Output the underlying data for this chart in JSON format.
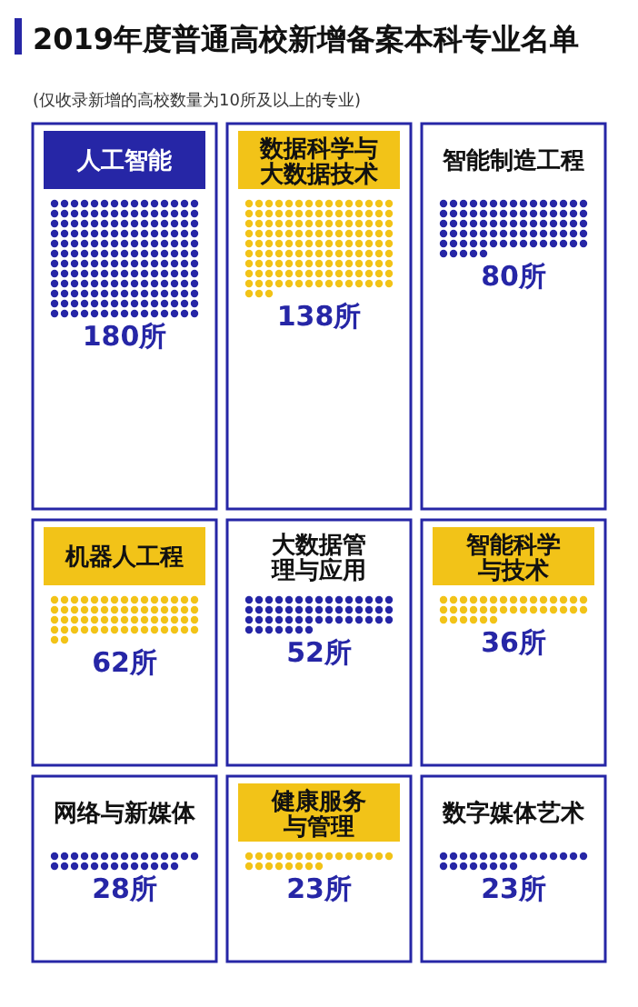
{
  "chart_data": {
    "type": "other",
    "title": "2019年度普通高校新增备案本科专业名单",
    "subtitle": "(仅收录新增的高校数量为10所及以上的专业)",
    "categories": [
      "人工智能",
      "数据科学与大数据技术",
      "智能制造工程",
      "机器人工程",
      "大数据管理与应用",
      "智能科学与技术",
      "网络与新媒体",
      "健康服务与管理",
      "数字媒体艺术"
    ],
    "values": [
      180,
      138,
      80,
      62,
      52,
      36,
      28,
      23,
      23
    ],
    "value_labels": [
      "180所",
      "138所",
      "80所",
      "62所",
      "52所",
      "36所",
      "28所",
      "23所",
      "23所"
    ],
    "colors": [
      "#2626a6",
      "#f2c318",
      "#2626a6",
      "#f2c318",
      "#2626a6",
      "#f2c318",
      "#2626a6",
      "#f2c318",
      "#2626a6"
    ]
  }
}
